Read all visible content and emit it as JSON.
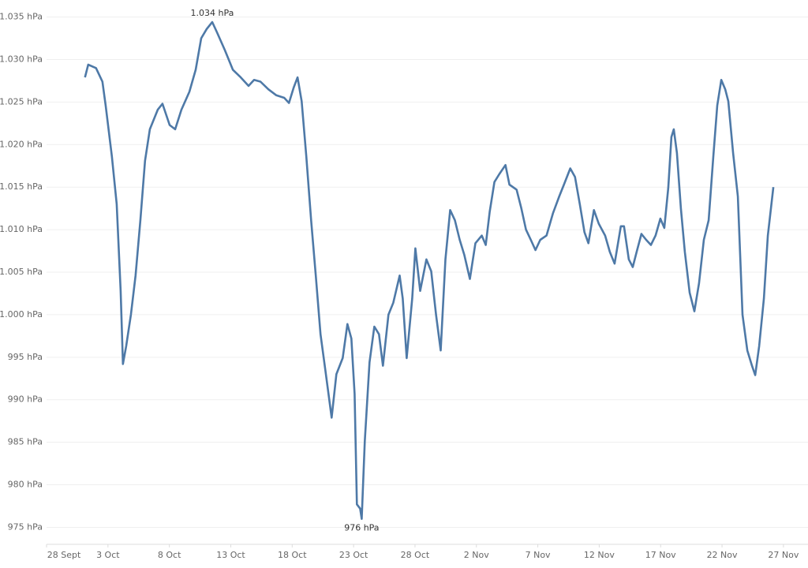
{
  "chart_data": {
    "type": "line",
    "color": "#4e79a7",
    "grid": true,
    "xlim": [
      0,
      62
    ],
    "ylim": [
      973,
      1037
    ],
    "xticks": [
      {
        "value": 0,
        "label": "28 Sept"
      },
      {
        "value": 5,
        "label": "3 Oct"
      },
      {
        "value": 10,
        "label": "8 Oct"
      },
      {
        "value": 15,
        "label": "13 Oct"
      },
      {
        "value": 20,
        "label": "18 Oct"
      },
      {
        "value": 25,
        "label": "23 Oct"
      },
      {
        "value": 30,
        "label": "28 Oct"
      },
      {
        "value": 35,
        "label": "2 Nov"
      },
      {
        "value": 40,
        "label": "7 Nov"
      },
      {
        "value": 45,
        "label": "12 Nov"
      },
      {
        "value": 50,
        "label": "17 Nov"
      },
      {
        "value": 55,
        "label": "22 Nov"
      },
      {
        "value": 60,
        "label": "27 Nov"
      }
    ],
    "yticks": [
      {
        "value": 975,
        "label": "975 hPa"
      },
      {
        "value": 980,
        "label": "980 hPa"
      },
      {
        "value": 985,
        "label": "985 hPa"
      },
      {
        "value": 990,
        "label": "990 hPa"
      },
      {
        "value": 995,
        "label": "995 hPa"
      },
      {
        "value": 1000,
        "label": "1.000 hPa"
      },
      {
        "value": 1005,
        "label": "1.005 hPa"
      },
      {
        "value": 1010,
        "label": "1.010 hPa"
      },
      {
        "value": 1015,
        "label": "1.015 hPa"
      },
      {
        "value": 1020,
        "label": "1.020 hPa"
      },
      {
        "value": 1025,
        "label": "1.025 hPa"
      },
      {
        "value": 1030,
        "label": "1.030 hPa"
      },
      {
        "value": 1035,
        "label": "1.035 hPa"
      }
    ],
    "annotations": [
      {
        "text": "1.034 hPa",
        "x": 13.49,
        "y": 1034.4
      },
      {
        "text": "976 hPa",
        "x": 25.66,
        "y": 976.0
      }
    ],
    "x": [
      3.13,
      3.39,
      4.03,
      4.55,
      4.81,
      5.32,
      5.71,
      6.03,
      6.22,
      6.48,
      6.87,
      7.25,
      7.64,
      8.02,
      8.41,
      9.05,
      9.44,
      10.02,
      10.47,
      10.98,
      11.63,
      12.14,
      12.59,
      13.04,
      13.49,
      13.88,
      14.52,
      15.17,
      15.81,
      16.45,
      16.9,
      17.42,
      18.06,
      18.71,
      19.35,
      19.74,
      20.12,
      20.44,
      20.77,
      21.15,
      21.54,
      21.92,
      22.31,
      22.7,
      23.21,
      23.6,
      24.11,
      24.5,
      24.82,
      25.08,
      25.27,
      25.53,
      25.66,
      25.91,
      26.3,
      26.69,
      27.07,
      27.39,
      27.84,
      28.23,
      28.75,
      29.0,
      29.32,
      29.77,
      30.03,
      30.42,
      30.93,
      31.32,
      31.71,
      32.09,
      32.48,
      32.86,
      33.25,
      33.64,
      34.02,
      34.47,
      34.92,
      35.44,
      35.76,
      36.08,
      36.47,
      36.85,
      37.37,
      37.69,
      38.27,
      38.66,
      39.04,
      39.43,
      39.81,
      40.2,
      40.71,
      41.23,
      41.74,
      42.13,
      42.64,
      43.03,
      43.42,
      43.8,
      44.12,
      44.57,
      44.96,
      45.48,
      45.86,
      46.25,
      46.76,
      47.02,
      47.41,
      47.73,
      48.05,
      48.44,
      48.82,
      49.21,
      49.59,
      49.98,
      50.3,
      50.62,
      50.88,
      51.07,
      51.33,
      51.65,
      51.97,
      52.36,
      52.75,
      53.13,
      53.52,
      53.91,
      54.29,
      54.61,
      54.94,
      55.26,
      55.51,
      55.9,
      56.29,
      56.67,
      57.06,
      57.44,
      57.7,
      58.02,
      58.41,
      58.73,
      59.18
    ],
    "values": [
      1027.9,
      1029.4,
      1029.0,
      1027.4,
      1024.6,
      1018.6,
      1013.0,
      1002.8,
      994.2,
      996.3,
      1000.0,
      1004.6,
      1011.1,
      1018.1,
      1021.8,
      1024.1,
      1024.8,
      1022.3,
      1021.8,
      1024.1,
      1026.2,
      1028.8,
      1032.5,
      1033.6,
      1034.4,
      1033.2,
      1031.1,
      1028.8,
      1027.9,
      1026.9,
      1027.6,
      1027.4,
      1026.5,
      1025.8,
      1025.5,
      1024.9,
      1026.7,
      1027.9,
      1025.1,
      1018.6,
      1011.1,
      1004.6,
      997.7,
      993.5,
      987.9,
      993.0,
      994.9,
      998.9,
      997.2,
      990.7,
      977.7,
      977.2,
      976.0,
      985.1,
      994.4,
      998.6,
      997.7,
      994.0,
      1000.0,
      1001.4,
      1004.6,
      1001.9,
      994.9,
      1001.9,
      1007.8,
      1002.8,
      1006.5,
      1005.1,
      1000.0,
      995.8,
      1006.5,
      1012.3,
      1011.1,
      1008.8,
      1007.0,
      1004.2,
      1008.4,
      1009.3,
      1008.2,
      1012.1,
      1015.6,
      1016.5,
      1017.6,
      1015.3,
      1014.7,
      1012.5,
      1010.0,
      1008.8,
      1007.6,
      1008.8,
      1009.3,
      1011.9,
      1013.9,
      1015.3,
      1017.2,
      1016.2,
      1013.0,
      1009.7,
      1008.4,
      1012.3,
      1010.7,
      1009.3,
      1007.4,
      1006.0,
      1010.4,
      1010.4,
      1006.5,
      1005.6,
      1007.4,
      1009.5,
      1008.8,
      1008.2,
      1009.3,
      1011.3,
      1010.2,
      1014.9,
      1020.9,
      1021.8,
      1019.0,
      1012.5,
      1007.4,
      1002.6,
      1000.4,
      1003.7,
      1008.8,
      1011.1,
      1018.6,
      1024.6,
      1027.6,
      1026.5,
      1025.1,
      1019.0,
      1013.9,
      1000.0,
      995.8,
      994.0,
      992.9,
      996.3,
      1001.9,
      1009.3,
      1015.0
    ]
  }
}
